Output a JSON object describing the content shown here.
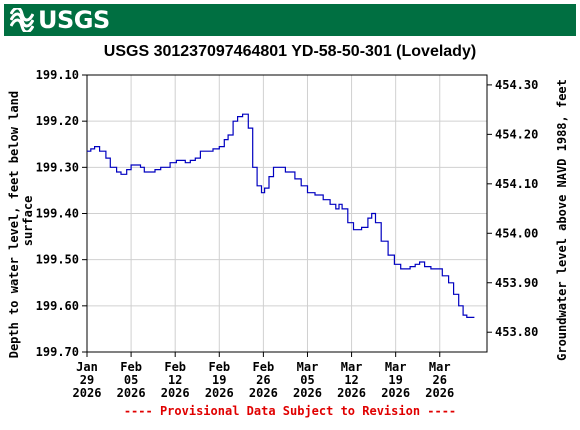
{
  "header": {
    "logo_text": "USGS",
    "brand_color": "#006f41",
    "logo_icon": "usgs-wave-icon"
  },
  "footer": {
    "notice": "---- Provisional Data Subject to Revision ----",
    "color": "#e00000"
  },
  "chart_data": {
    "type": "line",
    "title": "USGS 301237097464801 YD-58-50-301 (Lovelady)",
    "ylabel_left": "Depth to water level, feet below land surface",
    "ylabel_right": "Groundwater level above NAVD 1988, feet",
    "xlabel": "",
    "line_color": "#0000c0",
    "grid": true,
    "legend": "none",
    "xlim": [
      0,
      63.5
    ],
    "ylim_left": [
      199.7,
      199.1
    ],
    "ylim_right": [
      453.76,
      454.32
    ],
    "left_ticks": [
      "199.10",
      "199.20",
      "199.30",
      "199.40",
      "199.50",
      "199.60",
      "199.70"
    ],
    "left_tick_values": [
      199.1,
      199.2,
      199.3,
      199.4,
      199.5,
      199.6,
      199.7
    ],
    "right_ticks": [
      "454.30",
      "454.20",
      "454.10",
      "454.00",
      "453.90",
      "453.80"
    ],
    "right_tick_values": [
      454.3,
      454.2,
      454.1,
      454.0,
      453.9,
      453.8
    ],
    "x_tick_days": [
      0,
      7,
      14,
      21,
      28,
      35,
      42,
      49,
      56
    ],
    "x_ticks": [
      {
        "month": "Jan",
        "day": "29",
        "year": "2026"
      },
      {
        "month": "Feb",
        "day": "05",
        "year": "2026"
      },
      {
        "month": "Feb",
        "day": "12",
        "year": "2026"
      },
      {
        "month": "Feb",
        "day": "19",
        "year": "2026"
      },
      {
        "month": "Feb",
        "day": "26",
        "year": "2026"
      },
      {
        "month": "Mar",
        "day": "05",
        "year": "2026"
      },
      {
        "month": "Mar",
        "day": "12",
        "year": "2026"
      },
      {
        "month": "Mar",
        "day": "19",
        "year": "2026"
      },
      {
        "month": "Mar",
        "day": "26",
        "year": "2026"
      }
    ],
    "series": [
      {
        "x": [
          0,
          0.6,
          1.2,
          2.0,
          3.0,
          3.7,
          4.7,
          5.4,
          6.3,
          7.0,
          7.7,
          8.5,
          9.1,
          10.0,
          10.8,
          11.7,
          12.5,
          13.2,
          14.2,
          15.6,
          16.4,
          17.2,
          18.0,
          18.8,
          20.0,
          21.0,
          21.8,
          22.4,
          23.2,
          23.9,
          24.7,
          25.6,
          26.3,
          27.0,
          27.7,
          28.2,
          28.9,
          29.6,
          30.5,
          31.5,
          32.2,
          33.0,
          34.0,
          35.0,
          36.2,
          37.5,
          38.6,
          39.5,
          40.0,
          40.5,
          41.4,
          42.3,
          43.6,
          44.6,
          45.2,
          45.8,
          46.7,
          47.8,
          48.8,
          49.8,
          50.6,
          51.3,
          52.1,
          52.8,
          53.6,
          54.6,
          55.4,
          56.4,
          57.4,
          58.2,
          59.0,
          59.7,
          60.3,
          60.9,
          61.5
        ],
        "y": [
          199.265,
          199.26,
          199.255,
          199.265,
          199.28,
          199.3,
          199.31,
          199.315,
          199.305,
          199.295,
          199.295,
          199.3,
          199.31,
          199.31,
          199.305,
          199.3,
          199.3,
          199.29,
          199.285,
          199.29,
          199.285,
          199.28,
          199.265,
          199.265,
          199.26,
          199.255,
          199.24,
          199.23,
          199.2,
          199.19,
          199.185,
          199.215,
          199.3,
          199.34,
          199.355,
          199.345,
          199.32,
          199.3,
          199.3,
          199.31,
          199.31,
          199.325,
          199.34,
          199.355,
          199.36,
          199.37,
          199.38,
          199.39,
          199.38,
          199.39,
          199.42,
          199.435,
          199.43,
          199.41,
          199.4,
          199.42,
          199.46,
          199.49,
          199.51,
          199.52,
          199.52,
          199.515,
          199.51,
          199.505,
          199.515,
          199.52,
          199.52,
          199.535,
          199.55,
          199.575,
          199.6,
          199.62,
          199.625,
          199.625,
          199.625
        ]
      }
    ]
  }
}
